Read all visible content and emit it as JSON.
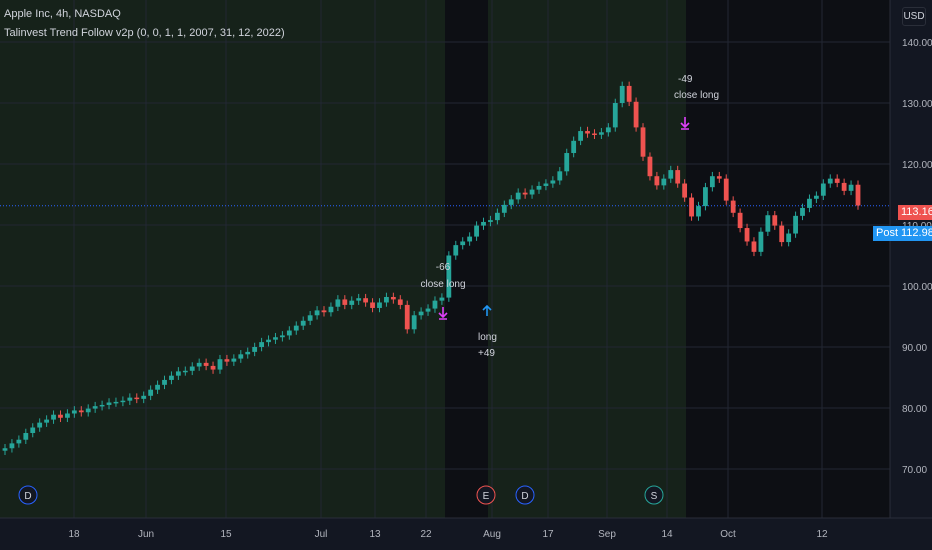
{
  "header": {
    "title": "Apple Inc, 4h, NASDAQ",
    "study": "Talinvest Trend Follow v2p (0, 0, 1, 1, 2007, 31, 12, 2022)",
    "currency": "USD"
  },
  "price_tags": {
    "last": "113.16",
    "post_label": "Post",
    "post": "112.98"
  },
  "colors": {
    "background": "#131722",
    "in_position_band": "#16221a",
    "flat_band": "#0d0f14",
    "up": "#26a69a",
    "down": "#ef5350",
    "exit_marker": "#e040fb",
    "entry_marker": "#2196f3",
    "grid": "#222733"
  },
  "chart_data": {
    "type": "candlestick",
    "y_axis": {
      "ticks": [
        70,
        80,
        90,
        100,
        110,
        120,
        130,
        140
      ],
      "tick_labels": [
        "70.00",
        "80.00",
        "90.00",
        "100.00",
        "110.00",
        "120.00",
        "130.00",
        "140.00"
      ],
      "position": "right"
    },
    "x_axis": {
      "tick_labels": [
        "18",
        "Jun",
        "15",
        "Jul",
        "13",
        "22",
        "Aug",
        "17",
        "Sep",
        "14",
        "Oct",
        "12"
      ]
    },
    "grid": true,
    "candles_close": [
      73.4,
      74.2,
      74.8,
      75.9,
      76.8,
      77.6,
      78.1,
      78.9,
      78.4,
      79.1,
      79.6,
      79.3,
      79.9,
      80.3,
      80.5,
      80.9,
      81.0,
      81.2,
      81.7,
      81.5,
      82.0,
      83.0,
      83.8,
      84.6,
      85.3,
      86.0,
      86.1,
      86.8,
      87.4,
      86.9,
      86.3,
      88.0,
      87.6,
      88.1,
      88.8,
      89.2,
      90.0,
      90.8,
      91.2,
      91.6,
      91.9,
      92.7,
      93.5,
      94.3,
      95.2,
      96.0,
      95.7,
      96.6,
      97.8,
      96.9,
      97.6,
      98.0,
      97.3,
      96.4,
      97.3,
      98.2,
      97.8,
      96.9,
      92.9,
      95.2,
      95.8,
      96.3,
      97.6,
      98.1,
      105.0,
      106.7,
      107.3,
      108.1,
      109.9,
      110.5,
      110.8,
      112.0,
      113.3,
      114.2,
      115.3,
      115.0,
      115.8,
      116.4,
      116.8,
      117.3,
      118.8,
      121.8,
      123.8,
      125.4,
      125.0,
      124.8,
      125.2,
      126.0,
      130.0,
      132.8,
      130.2,
      126.0,
      121.2,
      118.0,
      116.5,
      117.6,
      119.0,
      116.8,
      114.5,
      111.4,
      113.1,
      116.2,
      118.0,
      117.6,
      114.0,
      112.0,
      109.5,
      107.3,
      105.6,
      108.9,
      111.6,
      109.9,
      107.2,
      108.6,
      111.5,
      112.8,
      114.3,
      114.8,
      116.8,
      117.6,
      116.9,
      115.6,
      116.6,
      113.2
    ],
    "regions": [
      {
        "state": "in-position",
        "from_label": "start",
        "to_label": "22"
      },
      {
        "state": "flat",
        "from_label": "22",
        "to_label": "Aug"
      },
      {
        "state": "in-position",
        "from_label": "Aug",
        "to_label": "Sep"
      },
      {
        "state": "flat",
        "from_label": "Sep",
        "to_label": "end"
      }
    ],
    "annotations": [
      {
        "qty": "-66",
        "action": "close long"
      },
      {
        "qty": "+49",
        "action": "long"
      },
      {
        "qty": "-49",
        "action": "close long"
      }
    ],
    "events": [
      "D",
      "E",
      "D",
      "S"
    ],
    "last_price": 113.16,
    "post_price": 112.98
  }
}
